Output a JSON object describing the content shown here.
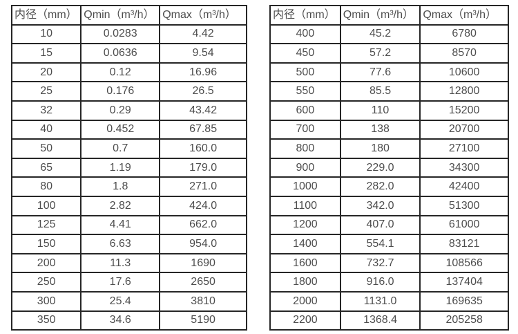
{
  "colors": {
    "background": "#ffffff",
    "border": "#262626",
    "text": "#4d4d4d"
  },
  "chart_data": [
    {
      "type": "table",
      "name": "flow-rate-table-dn10-350",
      "headers": [
        "内径（mm）",
        "Qmin（m³/h）",
        "Qmax（m³/h）"
      ],
      "rows": [
        [
          "10",
          "0.0283",
          "4.42"
        ],
        [
          "15",
          "0.0636",
          "9.54"
        ],
        [
          "20",
          "0.12",
          "16.96"
        ],
        [
          "25",
          "0.176",
          "26.5"
        ],
        [
          "32",
          "0.29",
          "43.42"
        ],
        [
          "40",
          "0.452",
          "67.85"
        ],
        [
          "50",
          "0.7",
          "160.0"
        ],
        [
          "65",
          "1.19",
          "179.0"
        ],
        [
          "80",
          "1.8",
          "271.0"
        ],
        [
          "100",
          "2.82",
          "424.0"
        ],
        [
          "125",
          "4.41",
          "662.0"
        ],
        [
          "150",
          "6.63",
          "954.0"
        ],
        [
          "200",
          "11.3",
          "1690"
        ],
        [
          "250",
          "17.6",
          "2650"
        ],
        [
          "300",
          "25.4",
          "3810"
        ],
        [
          "350",
          "34.6",
          "5190"
        ]
      ]
    },
    {
      "type": "table",
      "name": "flow-rate-table-dn400-2200",
      "headers": [
        "内径（mm）",
        "Qmin（m³/h）",
        "Qmax（m³/h）"
      ],
      "rows": [
        [
          "400",
          "45.2",
          "6780"
        ],
        [
          "450",
          "57.2",
          "8570"
        ],
        [
          "500",
          "77.6",
          "10600"
        ],
        [
          "550",
          "85.5",
          "12800"
        ],
        [
          "600",
          "110",
          "15200"
        ],
        [
          "700",
          "138",
          "20700"
        ],
        [
          "800",
          "180",
          "27100"
        ],
        [
          "900",
          "229.0",
          "34300"
        ],
        [
          "1000",
          "282.0",
          "42400"
        ],
        [
          "1100",
          "342.0",
          "51300"
        ],
        [
          "1200",
          "407.0",
          "61000"
        ],
        [
          "1400",
          "554.1",
          "83121"
        ],
        [
          "1600",
          "732.7",
          "108566"
        ],
        [
          "1800",
          "916.0",
          "137404"
        ],
        [
          "2000",
          "1131.0",
          "169635"
        ],
        [
          "2200",
          "1368.4",
          "205258"
        ]
      ]
    }
  ]
}
